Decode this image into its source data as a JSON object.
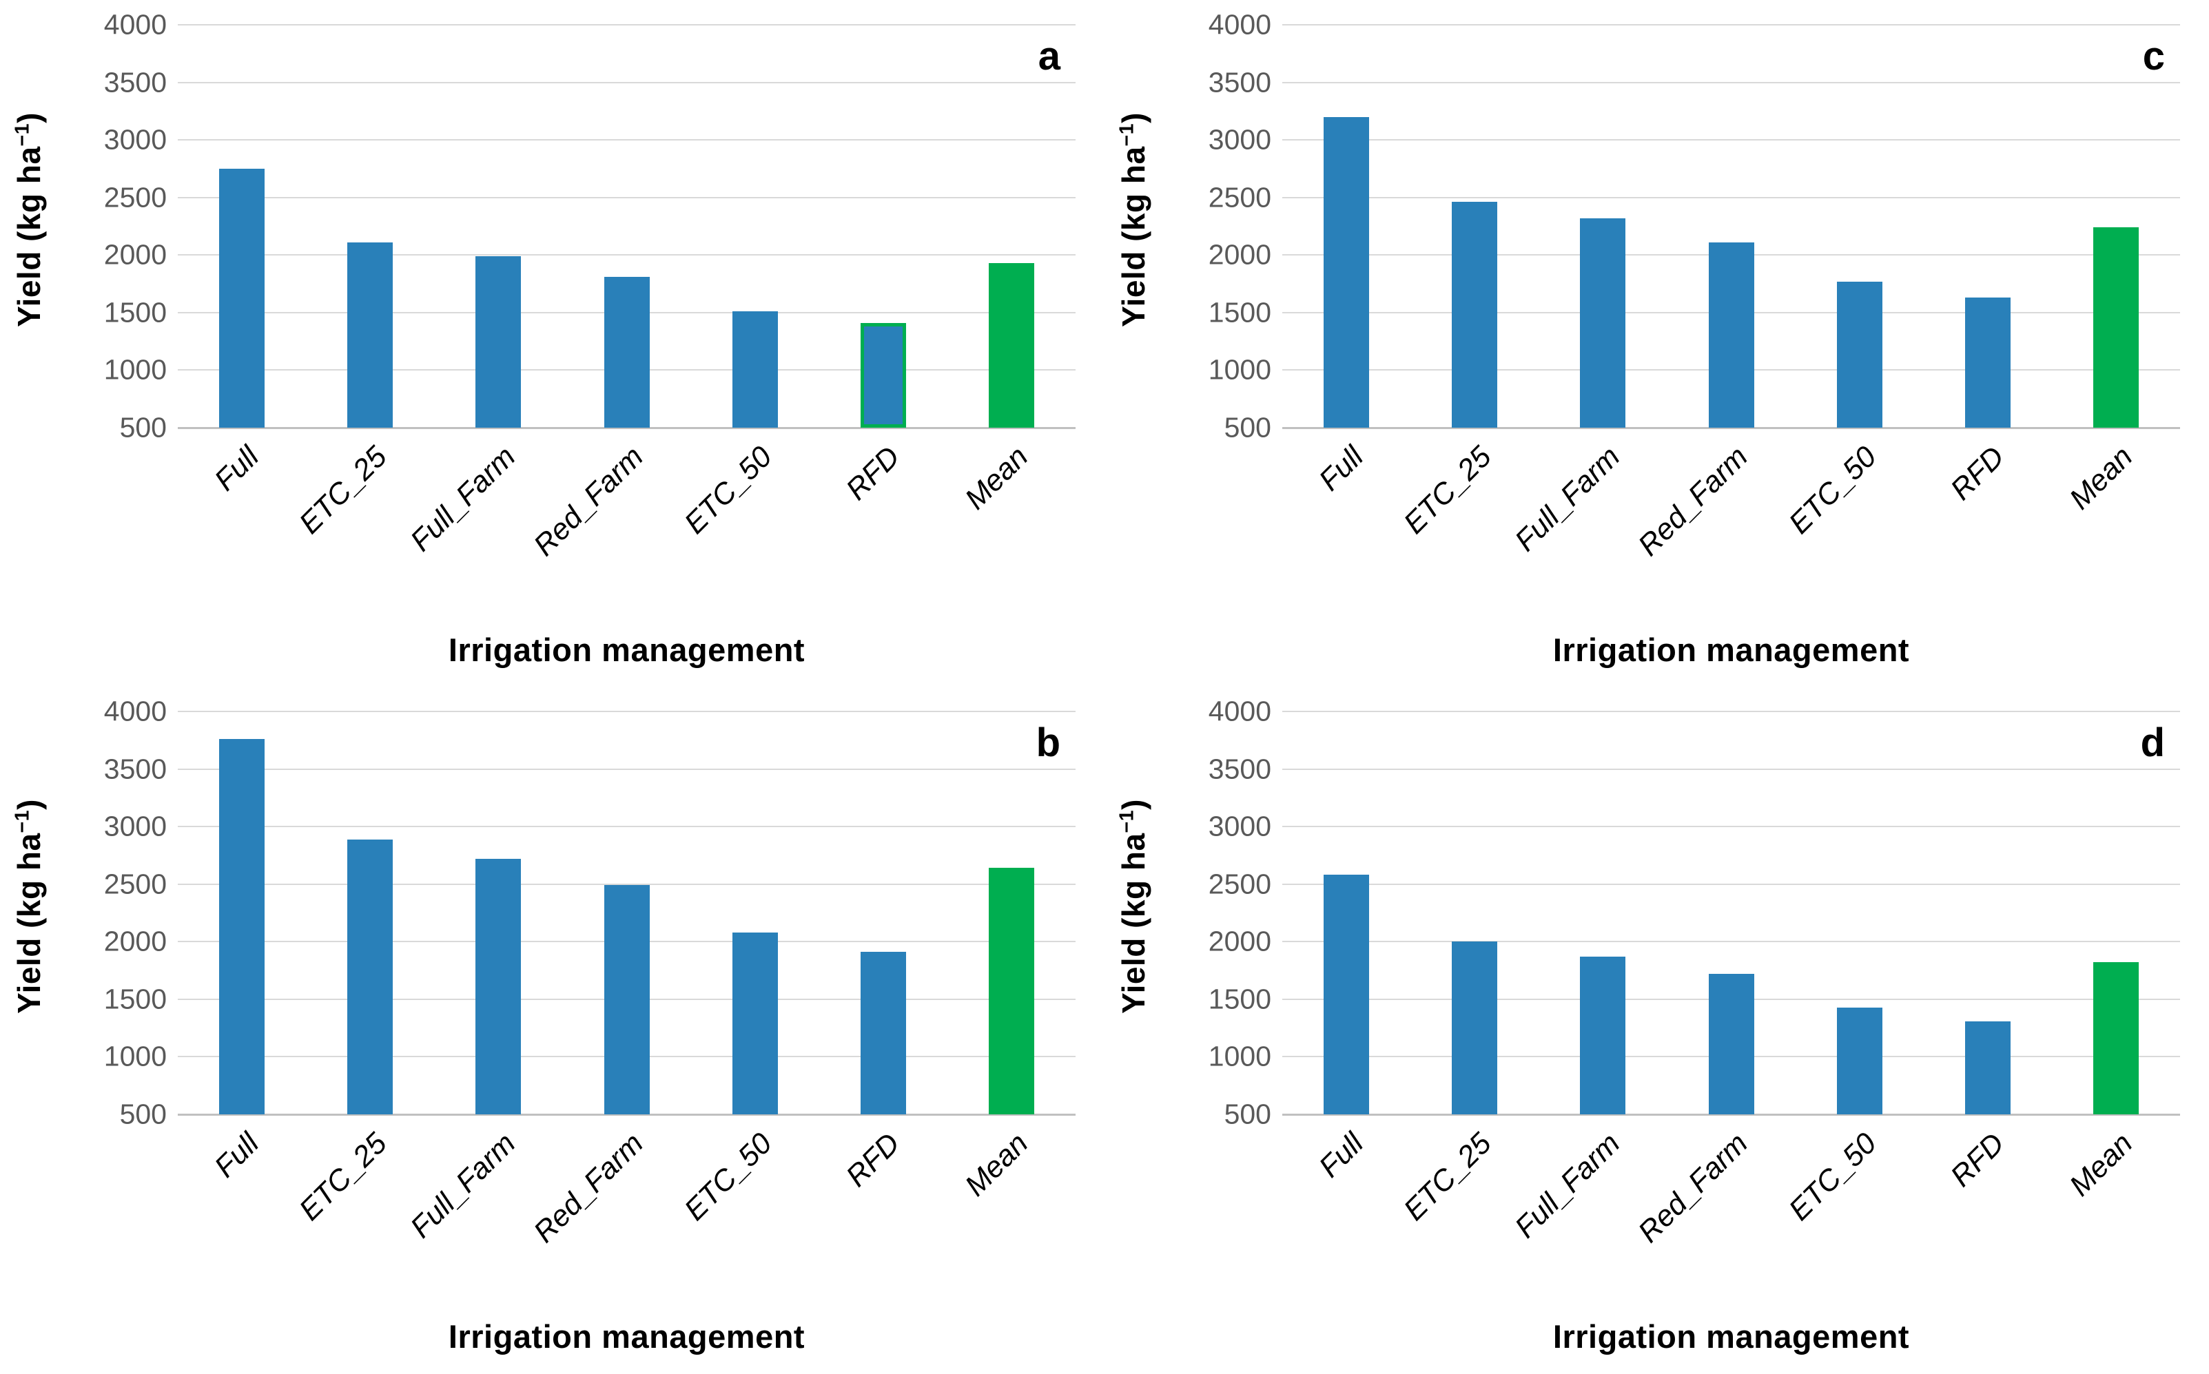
{
  "colors": {
    "bar_blue": "#2980b9",
    "bar_green": "#00ae50",
    "highlight_outline_green": "#00ae50",
    "gridline": "#d9d9d9",
    "baseline": "#c0c0c0",
    "tick_label": "#595959",
    "text": "#000000",
    "background": "#ffffff"
  },
  "ylabel_parts": {
    "prefix": "Yield (kg ha",
    "superscript": "−1",
    "suffix": ")"
  },
  "chart_data": [
    {
      "type": "bar",
      "panel_letter": "a",
      "grid_position": "top-left",
      "xlabel": "Irrigation management",
      "ylabel": "Yield (kg ha⁻¹)",
      "ylim": [
        500,
        4000
      ],
      "ytick_step": 500,
      "yticks": [
        4000,
        3500,
        3000,
        2500,
        2000,
        1500,
        1000,
        500
      ],
      "grid": true,
      "legend": false,
      "categories": [
        "Full",
        "ETC_25",
        "Full_Farm",
        "Red_Farm",
        "ETC_50",
        "RFD",
        "Mean"
      ],
      "values": [
        2750,
        2110,
        1990,
        1810,
        1510,
        1410,
        1930
      ],
      "bar_colors": [
        "blue",
        "blue",
        "blue",
        "blue",
        "blue",
        "blue",
        "green"
      ],
      "bar_outlines": [
        null,
        null,
        null,
        null,
        null,
        "green",
        null
      ]
    },
    {
      "type": "bar",
      "panel_letter": "c",
      "grid_position": "top-right",
      "xlabel": "Irrigation management",
      "ylabel": "Yield (kg ha⁻¹)",
      "ylim": [
        500,
        4000
      ],
      "ytick_step": 500,
      "yticks": [
        4000,
        3500,
        3000,
        2500,
        2000,
        1500,
        1000,
        500
      ],
      "grid": true,
      "legend": false,
      "categories": [
        "Full",
        "ETC_25",
        "Full_Farm",
        "Red_Farm",
        "ETC_50",
        "RFD",
        "Mean"
      ],
      "values": [
        3200,
        2460,
        2320,
        2110,
        1770,
        1630,
        2240
      ],
      "bar_colors": [
        "blue",
        "blue",
        "blue",
        "blue",
        "blue",
        "blue",
        "green"
      ],
      "bar_outlines": [
        null,
        null,
        null,
        null,
        null,
        null,
        null
      ]
    },
    {
      "type": "bar",
      "panel_letter": "b",
      "grid_position": "bottom-left",
      "xlabel": "Irrigation management",
      "ylabel": "Yield (kg ha⁻¹)",
      "ylim": [
        500,
        4000
      ],
      "ytick_step": 500,
      "yticks": [
        4000,
        3500,
        3000,
        2500,
        2000,
        1500,
        1000,
        500
      ],
      "grid": true,
      "legend": false,
      "categories": [
        "Full",
        "ETC_25",
        "Full_Farm",
        "Red_Farm",
        "ETC_50",
        "RFD",
        "Mean"
      ],
      "values": [
        3760,
        2890,
        2720,
        2490,
        2080,
        1910,
        2640
      ],
      "bar_colors": [
        "blue",
        "blue",
        "blue",
        "blue",
        "blue",
        "blue",
        "green"
      ],
      "bar_outlines": [
        null,
        null,
        null,
        null,
        null,
        null,
        null
      ]
    },
    {
      "type": "bar",
      "panel_letter": "d",
      "grid_position": "bottom-right",
      "xlabel": "Irrigation management",
      "ylabel": "Yield (kg ha⁻¹)",
      "ylim": [
        500,
        4000
      ],
      "ytick_step": 500,
      "yticks": [
        4000,
        3500,
        3000,
        2500,
        2000,
        1500,
        1000,
        500
      ],
      "grid": true,
      "legend": false,
      "categories": [
        "Full",
        "ETC_25",
        "Full_Farm",
        "Red_Farm",
        "ETC_50",
        "RFD",
        "Mean"
      ],
      "values": [
        2580,
        2000,
        1870,
        1720,
        1430,
        1310,
        1820
      ],
      "bar_colors": [
        "blue",
        "blue",
        "blue",
        "blue",
        "blue",
        "blue",
        "green"
      ],
      "bar_outlines": [
        null,
        null,
        null,
        null,
        null,
        null,
        null
      ]
    }
  ]
}
